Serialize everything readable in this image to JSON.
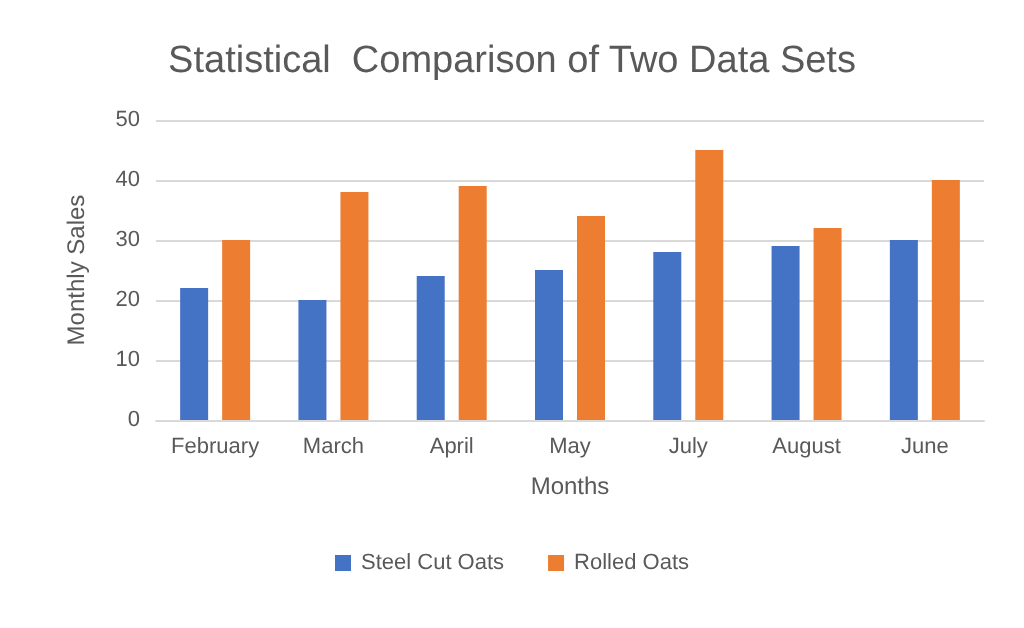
{
  "chart_data": {
    "type": "bar",
    "title": "Statistical  Comparison of Two Data Sets",
    "xlabel": "Months",
    "ylabel": "Monthly Sales",
    "categories": [
      "February",
      "March",
      "April",
      "May",
      "July",
      "August",
      "June"
    ],
    "series": [
      {
        "name": "Steel Cut Oats",
        "color": "#4472c4",
        "values": [
          22,
          20,
          24,
          25,
          28,
          29,
          30
        ]
      },
      {
        "name": "Rolled Oats",
        "color": "#ed7d31",
        "values": [
          30,
          38,
          39,
          34,
          45,
          32,
          40
        ]
      }
    ],
    "ylim": [
      0,
      50
    ],
    "yticks": [
      0,
      10,
      20,
      30,
      40,
      50
    ],
    "grid": "y",
    "legend": "bottom"
  }
}
